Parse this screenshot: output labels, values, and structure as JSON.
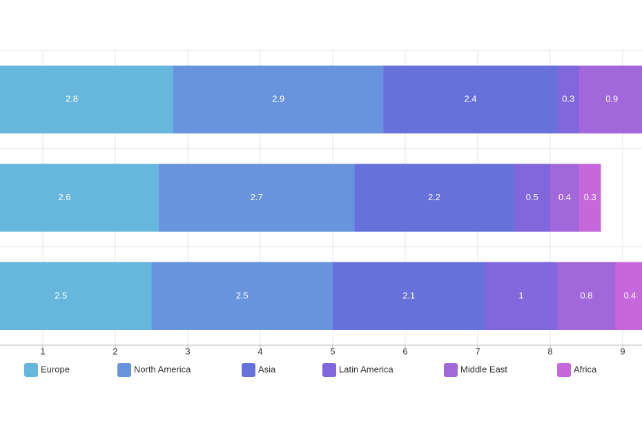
{
  "chart_data": {
    "type": "stacked-bar-horizontal",
    "categories": [
      null,
      null,
      null
    ],
    "series": [
      {
        "name": "Europe",
        "color": "#67b7dc",
        "values": [
          2.8,
          2.6,
          2.5
        ]
      },
      {
        "name": "North America",
        "color": "#6794dc",
        "values": [
          2.9,
          2.7,
          2.5
        ]
      },
      {
        "name": "Asia",
        "color": "#6771dc",
        "values": [
          2.4,
          2.2,
          2.1
        ]
      },
      {
        "name": "Latin America",
        "color": "#8067dc",
        "values": [
          0.3,
          0.5,
          1
        ]
      },
      {
        "name": "Middle East",
        "color": "#a367dc",
        "values": [
          0.9,
          0.4,
          0.8
        ]
      },
      {
        "name": "Africa",
        "color": "#c767dc",
        "values": [
          null,
          0.3,
          0.4
        ]
      }
    ],
    "xlim": [
      0,
      10
    ],
    "xticks": [
      1,
      2,
      3,
      4,
      5,
      6,
      7,
      8,
      9
    ],
    "grid": true,
    "legend": "bottom"
  }
}
